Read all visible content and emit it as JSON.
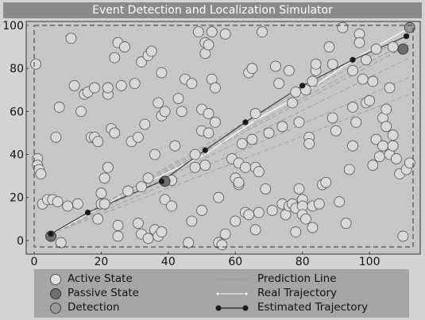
{
  "window": {
    "title": "Event Detection and Localization Simulator"
  },
  "chart_data": {
    "type": "scatter",
    "xlim": [
      0,
      113
    ],
    "ylim": [
      -3,
      100
    ],
    "x_ticks": [
      0,
      20,
      40,
      60,
      80,
      100
    ],
    "y_ticks": [
      0,
      20,
      40,
      60,
      80,
      100
    ],
    "x_tick_labels": [
      "0",
      "20",
      "40",
      "60",
      "80",
      "100"
    ],
    "y_tick_labels": [
      "0",
      "20",
      "40",
      "60",
      "80",
      "100"
    ],
    "grid": false,
    "colors": {
      "active": "#d9d9d9",
      "passive": "#6e6e6e",
      "detection": "#9a9a9a",
      "estimated": "#1a1a1a",
      "real": "#ffffff",
      "prediction": "#9c9c9c"
    },
    "active_nodes": [
      [
        0.5,
        82
      ],
      [
        1,
        38
      ],
      [
        1,
        35
      ],
      [
        1.5,
        33
      ],
      [
        2,
        31
      ],
      [
        2.5,
        17
      ],
      [
        4,
        19
      ],
      [
        5.5,
        19
      ],
      [
        7,
        18
      ],
      [
        6.5,
        48
      ],
      [
        7.5,
        62
      ],
      [
        8,
        -1
      ],
      [
        10,
        16
      ],
      [
        11,
        94
      ],
      [
        12,
        72
      ],
      [
        13,
        17
      ],
      [
        14,
        60
      ],
      [
        15,
        68
      ],
      [
        16,
        69
      ],
      [
        17,
        48
      ],
      [
        18,
        48
      ],
      [
        18,
        71
      ],
      [
        19,
        46
      ],
      [
        19,
        10
      ],
      [
        20,
        17
      ],
      [
        20,
        22
      ],
      [
        21,
        17
      ],
      [
        21,
        29
      ],
      [
        22,
        34
      ],
      [
        22,
        68
      ],
      [
        22,
        71
      ],
      [
        23,
        52
      ],
      [
        24,
        50
      ],
      [
        24,
        85
      ],
      [
        25,
        92
      ],
      [
        25,
        7
      ],
      [
        25,
        2
      ],
      [
        26,
        72
      ],
      [
        27,
        90
      ],
      [
        28,
        23
      ],
      [
        29,
        46
      ],
      [
        30,
        73
      ],
      [
        31,
        48
      ],
      [
        31,
        8
      ],
      [
        32,
        3
      ],
      [
        32,
        83
      ],
      [
        32,
        25
      ],
      [
        33,
        54
      ],
      [
        34,
        86
      ],
      [
        34,
        1
      ],
      [
        34,
        29
      ],
      [
        35,
        88
      ],
      [
        36,
        5
      ],
      [
        36,
        40
      ],
      [
        37,
        64
      ],
      [
        37,
        2
      ],
      [
        38,
        78
      ],
      [
        38,
        4
      ],
      [
        38,
        58
      ],
      [
        39,
        60
      ],
      [
        39,
        19
      ],
      [
        41,
        28
      ],
      [
        41,
        16
      ],
      [
        42,
        44
      ],
      [
        43,
        66
      ],
      [
        44,
        60
      ],
      [
        45,
        75
      ],
      [
        46,
        -1
      ],
      [
        47,
        73
      ],
      [
        47,
        9
      ],
      [
        48,
        34
      ],
      [
        48,
        40
      ],
      [
        49,
        97
      ],
      [
        50,
        51
      ],
      [
        50,
        61
      ],
      [
        50,
        14
      ],
      [
        51,
        92
      ],
      [
        51,
        87
      ],
      [
        51,
        35
      ],
      [
        52,
        91
      ],
      [
        52,
        59
      ],
      [
        52,
        50
      ],
      [
        53,
        97
      ],
      [
        53,
        75
      ],
      [
        54,
        71
      ],
      [
        54,
        55
      ],
      [
        55,
        20
      ],
      [
        55,
        -1
      ],
      [
        56,
        -2
      ],
      [
        57,
        96
      ],
      [
        57,
        3
      ],
      [
        59,
        38
      ],
      [
        60,
        29
      ],
      [
        60,
        9
      ],
      [
        61,
        36
      ],
      [
        61,
        26
      ],
      [
        61,
        27
      ],
      [
        62,
        45
      ],
      [
        63,
        34
      ],
      [
        63,
        13
      ],
      [
        64,
        78
      ],
      [
        64,
        12
      ],
      [
        65,
        47
      ],
      [
        65,
        80
      ],
      [
        66,
        59
      ],
      [
        66,
        34
      ],
      [
        66,
        5
      ],
      [
        67,
        13
      ],
      [
        67,
        32
      ],
      [
        68,
        97
      ],
      [
        69,
        24
      ],
      [
        70,
        50
      ],
      [
        71,
        14
      ],
      [
        72,
        81
      ],
      [
        73,
        73
      ],
      [
        74,
        53
      ],
      [
        74,
        17
      ],
      [
        75,
        12
      ],
      [
        76,
        79
      ],
      [
        76,
        16
      ],
      [
        77,
        64
      ],
      [
        77,
        17
      ],
      [
        78,
        15
      ],
      [
        78,
        4
      ],
      [
        78,
        69
      ],
      [
        79,
        24
      ],
      [
        79,
        55
      ],
      [
        80,
        19
      ],
      [
        80,
        16
      ],
      [
        80,
        12
      ],
      [
        81,
        10
      ],
      [
        81,
        70
      ],
      [
        82,
        48
      ],
      [
        82,
        45
      ],
      [
        83,
        16
      ],
      [
        83,
        6
      ],
      [
        83,
        74
      ],
      [
        84,
        79
      ],
      [
        84,
        82
      ],
      [
        85,
        17
      ],
      [
        86,
        26
      ],
      [
        87,
        27
      ],
      [
        88,
        90
      ],
      [
        89,
        82
      ],
      [
        89,
        57
      ],
      [
        90,
        51
      ],
      [
        91,
        18
      ],
      [
        92,
        99
      ],
      [
        93,
        8
      ],
      [
        94,
        33
      ],
      [
        95,
        62
      ],
      [
        95,
        44
      ],
      [
        95,
        79
      ],
      [
        96,
        55
      ],
      [
        97,
        96
      ],
      [
        97,
        92
      ],
      [
        98,
        75
      ],
      [
        99,
        84
      ],
      [
        99,
        64
      ],
      [
        100,
        65
      ],
      [
        101,
        35
      ],
      [
        101,
        74
      ],
      [
        102,
        47
      ],
      [
        102,
        89
      ],
      [
        103,
        39
      ],
      [
        104,
        44
      ],
      [
        104,
        57
      ],
      [
        105,
        61
      ],
      [
        105,
        53
      ],
      [
        106,
        40
      ],
      [
        106,
        71
      ],
      [
        107,
        44
      ],
      [
        107,
        49
      ],
      [
        107,
        90
      ],
      [
        108,
        38
      ],
      [
        109,
        31
      ],
      [
        110,
        2
      ],
      [
        111,
        33
      ],
      [
        112,
        36
      ]
    ],
    "passive_nodes": [
      [
        5,
        2
      ],
      [
        110,
        89
      ],
      [
        39,
        27.5
      ]
    ],
    "detection_nodes": [
      [
        112,
        99
      ]
    ],
    "estimated_trajectory": [
      [
        5,
        3
      ],
      [
        16,
        13
      ],
      [
        38,
        27.5
      ],
      [
        51,
        42
      ],
      [
        63,
        55
      ],
      [
        80,
        72
      ],
      [
        95,
        84
      ],
      [
        111,
        95
      ]
    ],
    "real_trajectory": [
      [
        4,
        2
      ],
      [
        31,
        25
      ],
      [
        51,
        40
      ],
      [
        66,
        56
      ],
      [
        81,
        69
      ],
      [
        95,
        84
      ],
      [
        112,
        99
      ]
    ],
    "prediction_lines": [
      [
        [
          5,
          3
        ],
        [
          112,
          99
        ]
      ],
      [
        [
          5,
          3
        ],
        [
          112,
          91
        ]
      ],
      [
        [
          5,
          3
        ],
        [
          112,
          85
        ]
      ],
      [
        [
          5,
          3
        ],
        [
          112,
          76
        ]
      ],
      [
        [
          5,
          3
        ],
        [
          112,
          96
        ]
      ],
      [
        [
          5,
          3
        ],
        [
          112,
          68
        ]
      ],
      [
        [
          5,
          3
        ],
        [
          112,
          93
        ]
      ]
    ],
    "legend": {
      "active": "Active State",
      "passive": "Passive State",
      "detection": "Detection",
      "prediction": "Prediction Line",
      "real": "Real Trajectory",
      "estimated": "Estimated Trajectory"
    }
  }
}
